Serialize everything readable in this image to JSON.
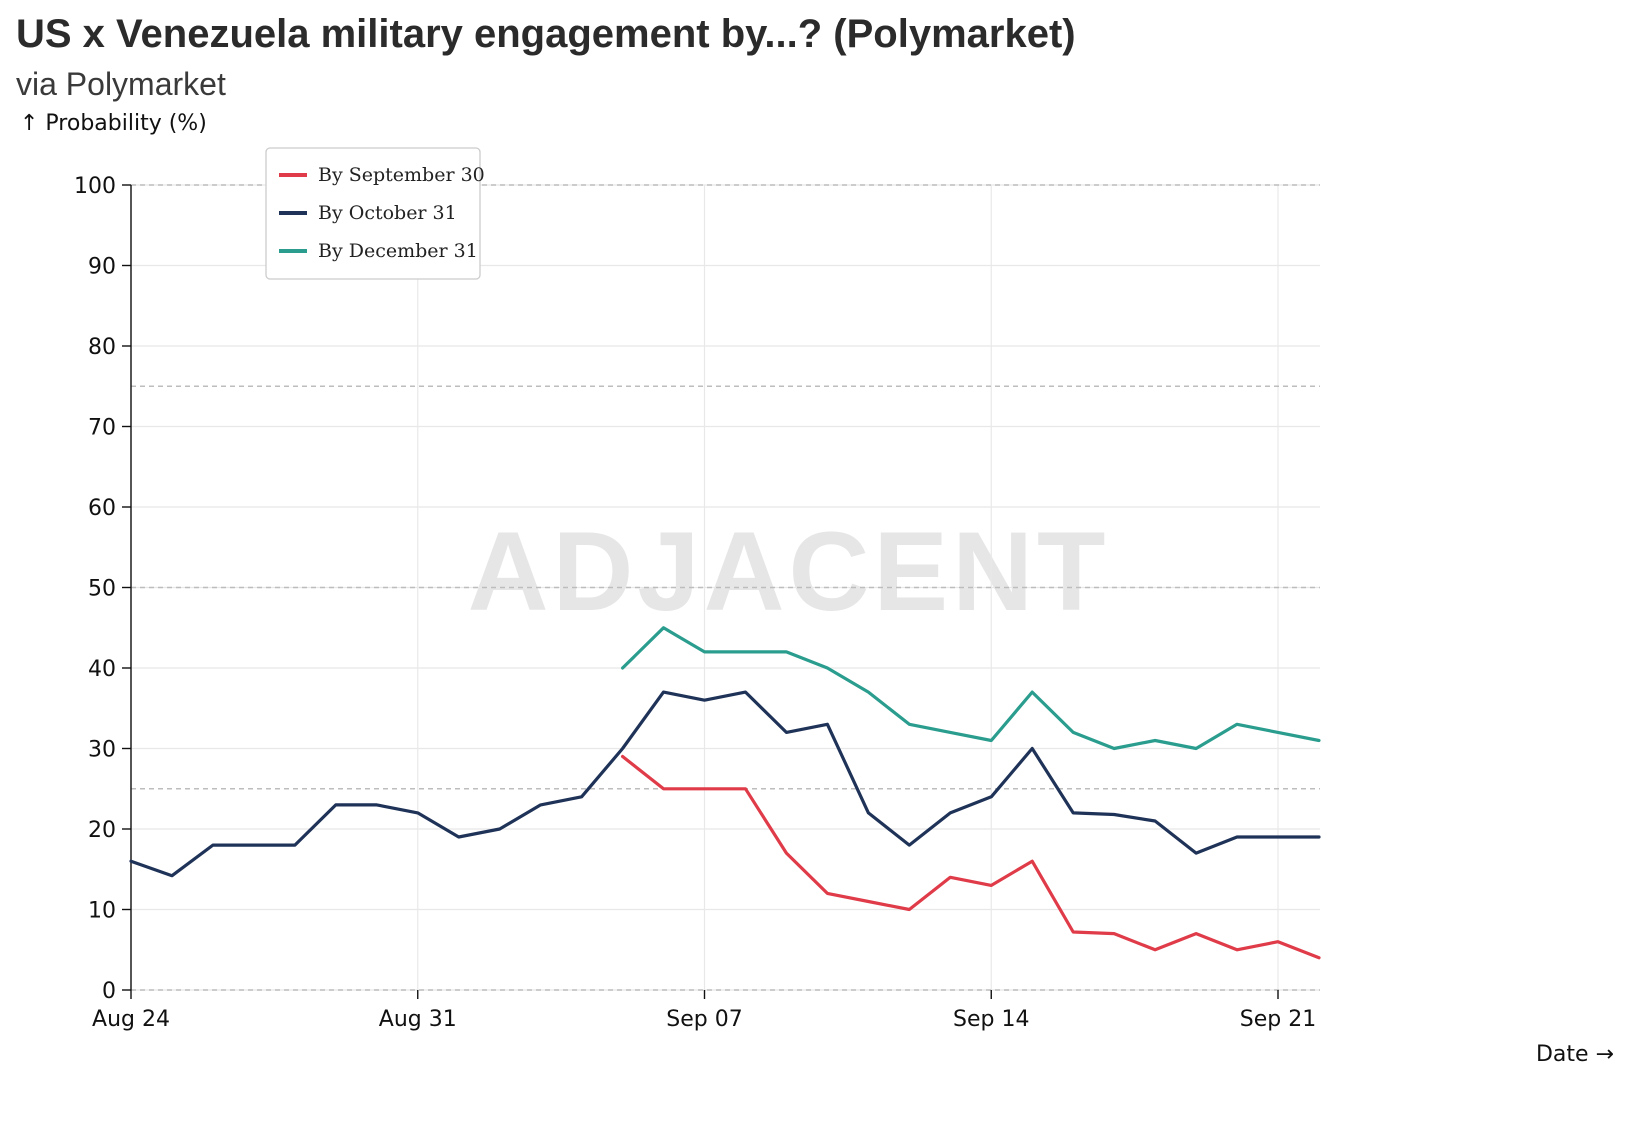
{
  "chart_data": {
    "type": "line",
    "title": "US x Venezuela military engagement by...? (Polymarket)",
    "subtitle": "via Polymarket",
    "ylabel": "↑ Probability (%)",
    "xlabel": "Date →",
    "watermark": "ADJACENT",
    "ylim": [
      0,
      100
    ],
    "yticks": [
      0,
      10,
      20,
      30,
      40,
      50,
      60,
      70,
      80,
      90,
      100
    ],
    "reference_lines": [
      25,
      50,
      75,
      100,
      0
    ],
    "x_range": [
      "Aug 24",
      "Sep 22"
    ],
    "x_ticks": [
      {
        "day": 0,
        "label": "Aug 24"
      },
      {
        "day": 7,
        "label": "Aug 31"
      },
      {
        "day": 14,
        "label": "Sep 07"
      },
      {
        "day": 21,
        "label": "Sep 14"
      },
      {
        "day": 28,
        "label": "Sep 21"
      }
    ],
    "x_day_max": 29,
    "grid": true,
    "legend_position": "top-left",
    "series": [
      {
        "name": "By September 30",
        "color": "#e03b48",
        "points": [
          [
            12,
            29
          ],
          [
            13,
            25
          ],
          [
            14,
            25
          ],
          [
            15,
            25
          ],
          [
            16,
            17
          ],
          [
            17,
            12
          ],
          [
            18,
            11
          ],
          [
            19,
            10
          ],
          [
            20,
            14
          ],
          [
            21,
            13
          ],
          [
            22,
            16
          ],
          [
            23,
            7.2
          ],
          [
            24,
            7
          ],
          [
            25,
            5
          ],
          [
            26,
            7
          ],
          [
            27,
            5
          ],
          [
            28,
            6
          ],
          [
            29,
            4
          ]
        ]
      },
      {
        "name": "By October 31",
        "color": "#1f3358",
        "points": [
          [
            0,
            16
          ],
          [
            1,
            14.2
          ],
          [
            2,
            18
          ],
          [
            3,
            18
          ],
          [
            4,
            18
          ],
          [
            5,
            23
          ],
          [
            6,
            23
          ],
          [
            7,
            22
          ],
          [
            8,
            19
          ],
          [
            9,
            20
          ],
          [
            10,
            23
          ],
          [
            11,
            24
          ],
          [
            12,
            30
          ],
          [
            13,
            37
          ],
          [
            14,
            36
          ],
          [
            15,
            37
          ],
          [
            16,
            32
          ],
          [
            17,
            33
          ],
          [
            18,
            22
          ],
          [
            19,
            18
          ],
          [
            20,
            22
          ],
          [
            21,
            24
          ],
          [
            22,
            30
          ],
          [
            23,
            22
          ],
          [
            24,
            21.8
          ],
          [
            25,
            21
          ],
          [
            26,
            17
          ],
          [
            27,
            19
          ],
          [
            28,
            19
          ],
          [
            29,
            19
          ]
        ]
      },
      {
        "name": "By December 31",
        "color": "#2a9d8f",
        "points": [
          [
            12,
            40
          ],
          [
            13,
            45
          ],
          [
            14,
            42
          ],
          [
            15,
            42
          ],
          [
            16,
            42
          ],
          [
            17,
            40
          ],
          [
            18,
            37
          ],
          [
            19,
            33
          ],
          [
            20,
            32
          ],
          [
            21,
            31
          ],
          [
            22,
            37
          ],
          [
            23,
            32
          ],
          [
            24,
            30
          ],
          [
            25,
            31
          ],
          [
            26,
            30
          ],
          [
            27,
            33
          ],
          [
            28,
            32
          ],
          [
            29,
            31
          ]
        ]
      }
    ]
  }
}
